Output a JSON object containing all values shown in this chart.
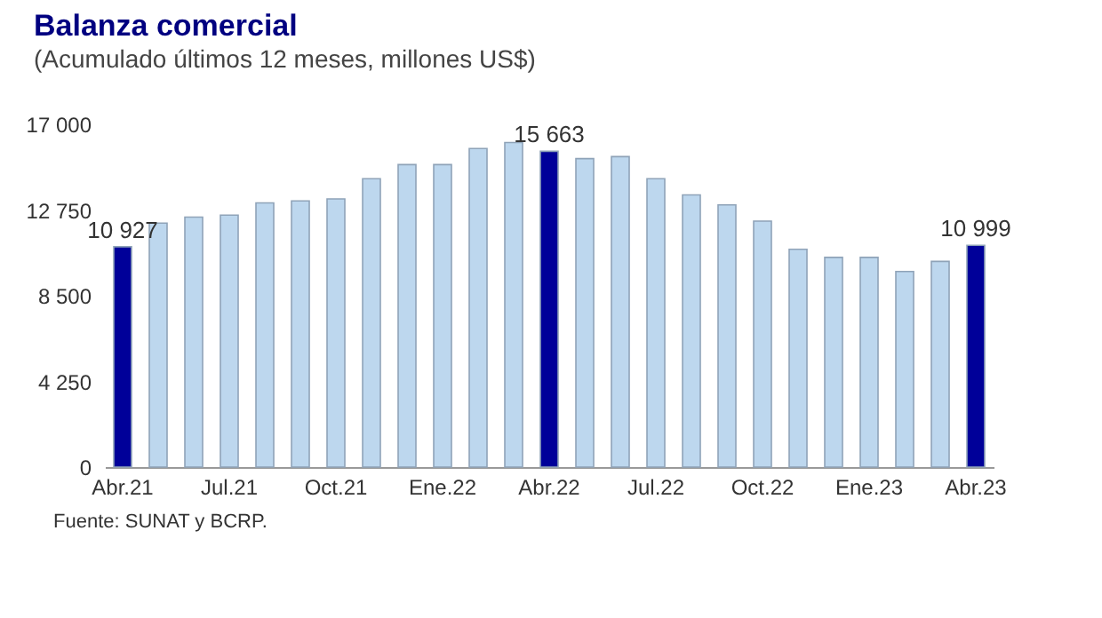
{
  "chart_data": {
    "type": "bar",
    "title": "Balanza comercial",
    "subtitle": "(Acumulado últimos 12 meses, millones US$)",
    "categories": [
      "Abr.21",
      null,
      null,
      "Jul.21",
      null,
      null,
      "Oct.21",
      null,
      null,
      "Ene.22",
      null,
      null,
      "Abr.22",
      null,
      null,
      "Jul.22",
      null,
      null,
      "Oct.22",
      null,
      null,
      "Ene.23",
      null,
      null,
      "Abr.23"
    ],
    "values": [
      10927,
      12100,
      12400,
      12500,
      13100,
      13200,
      13300,
      14300,
      15000,
      15000,
      15800,
      16100,
      15663,
      15300,
      15400,
      14300,
      13500,
      13000,
      12200,
      10800,
      10400,
      10400,
      9700,
      10200,
      10999
    ],
    "colors": [
      "#000099",
      "#bdd7ee",
      "#bdd7ee",
      "#bdd7ee",
      "#bdd7ee",
      "#bdd7ee",
      "#bdd7ee",
      "#bdd7ee",
      "#bdd7ee",
      "#bdd7ee",
      "#bdd7ee",
      "#bdd7ee",
      "#000099",
      "#bdd7ee",
      "#bdd7ee",
      "#bdd7ee",
      "#bdd7ee",
      "#bdd7ee",
      "#bdd7ee",
      "#bdd7ee",
      "#bdd7ee",
      "#bdd7ee",
      "#bdd7ee",
      "#bdd7ee",
      "#000099"
    ],
    "value_labels": [
      "10 927",
      null,
      null,
      null,
      null,
      null,
      null,
      null,
      null,
      null,
      null,
      null,
      "15 663",
      null,
      null,
      null,
      null,
      null,
      null,
      null,
      null,
      null,
      null,
      null,
      "10 999"
    ],
    "ylim": [
      0,
      17000
    ],
    "yticks": [
      0,
      {
        "value": 4250,
        "label": "4 250"
      },
      {
        "value": 8500,
        "label": "8 500"
      },
      {
        "value": 12750,
        "label": "12 750"
      },
      {
        "value": 17000,
        "label": "17 000"
      }
    ],
    "grid": false,
    "annotations": [
      "Fuente: SUNAT y BCRP."
    ]
  }
}
